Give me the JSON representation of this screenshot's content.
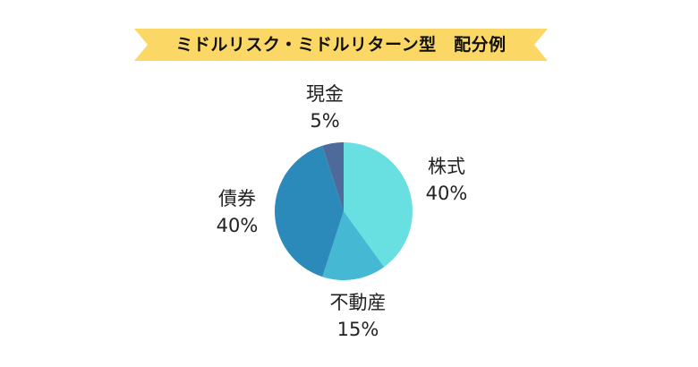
{
  "banner": {
    "title": "ミドルリスク・ミドルリターン型　配分例",
    "color": "#FBD865"
  },
  "chart_data": {
    "type": "pie",
    "title": "ミドルリスク・ミドルリターン型　配分例",
    "categories": [
      "株式",
      "不動産",
      "債券",
      "現金"
    ],
    "values": [
      40,
      15,
      40,
      5
    ],
    "unit": "%",
    "colors": [
      "#68E0E2",
      "#45B9D4",
      "#2B8AB9",
      "#4E6A9B"
    ],
    "start_angle_deg": 0,
    "direction": "clockwise",
    "legend": "none (direct labels)"
  },
  "labels": [
    {
      "name": "株式",
      "pct": "40%"
    },
    {
      "name": "不動産",
      "pct": "15%"
    },
    {
      "name": "債券",
      "pct": "40%"
    },
    {
      "name": "現金",
      "pct": "5%"
    }
  ]
}
